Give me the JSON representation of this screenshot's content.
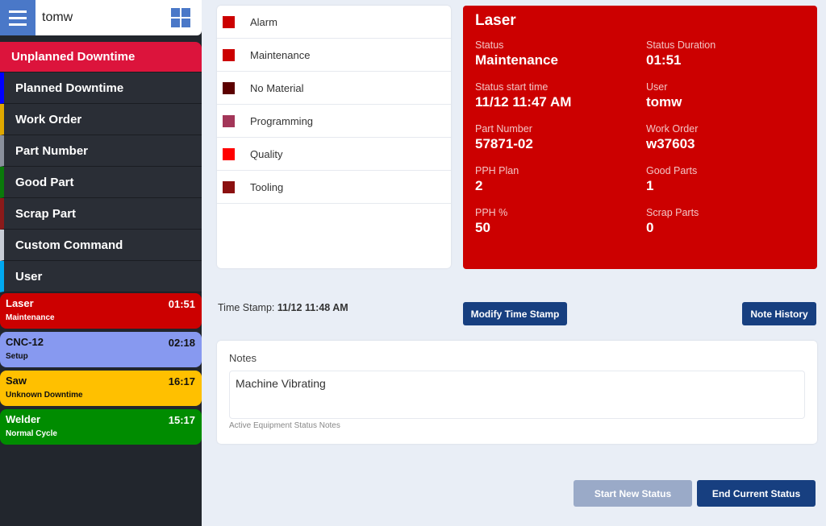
{
  "header": {
    "username": "tomw"
  },
  "menu": [
    {
      "label": "Unplanned Downtime",
      "color": "#dc143c"
    },
    {
      "label": "Planned Downtime",
      "color": "#0000ff"
    },
    {
      "label": "Work Order",
      "color": "#e0a800"
    },
    {
      "label": "Part Number",
      "color": "#8a909c"
    },
    {
      "label": "Good Part",
      "color": "#0a7a0a"
    },
    {
      "label": "Scrap Part",
      "color": "#8b1a1a"
    },
    {
      "label": "Custom Command",
      "color": "#c8cdd6"
    },
    {
      "label": "User",
      "color": "#00a8f0"
    }
  ],
  "equipment": [
    {
      "name": "Laser",
      "time": "01:51",
      "status": "Maintenance",
      "bg": "#cc0000",
      "fg": "#ffffff"
    },
    {
      "name": "CNC-12",
      "time": "02:18",
      "status": "Setup",
      "bg": "#8799f0",
      "fg": "#111111"
    },
    {
      "name": "Saw",
      "time": "16:17",
      "status": "Unknown Downtime",
      "bg": "#ffc000",
      "fg": "#111111"
    },
    {
      "name": "Welder",
      "time": "15:17",
      "status": "Normal Cycle",
      "bg": "#008c00",
      "fg": "#ffffff"
    }
  ],
  "statuses": [
    {
      "label": "Alarm",
      "color": "#cc0000"
    },
    {
      "label": "Maintenance",
      "color": "#cc0000"
    },
    {
      "label": "No Material",
      "color": "#5c0000"
    },
    {
      "label": "Programming",
      "color": "#a33659"
    },
    {
      "label": "Quality",
      "color": "#ff0000"
    },
    {
      "label": "Tooling",
      "color": "#8b1010"
    }
  ],
  "detail": {
    "title": "Laser",
    "fields": [
      {
        "label": "Status",
        "value": "Maintenance"
      },
      {
        "label": "Status Duration",
        "value": "01:51"
      },
      {
        "label": "Status start time",
        "value": "11/12 11:47 AM"
      },
      {
        "label": "User",
        "value": "tomw"
      },
      {
        "label": "Part Number",
        "value": "57871-02"
      },
      {
        "label": "Work Order",
        "value": "w37603"
      },
      {
        "label": "PPH Plan",
        "value": "2"
      },
      {
        "label": "Good Parts",
        "value": "1"
      },
      {
        "label": "PPH %",
        "value": "50"
      },
      {
        "label": "Scrap Parts",
        "value": "0"
      }
    ]
  },
  "timestamp": {
    "label": "Time Stamp:",
    "value": "11/12 11:48 AM"
  },
  "buttons": {
    "modify": "Modify Time Stamp",
    "history": "Note History",
    "start": "Start New Status",
    "end": "End Current Status"
  },
  "notes": {
    "label": "Notes",
    "value": "Machine Vibrating",
    "hint": "Active Equipment Status Notes"
  }
}
